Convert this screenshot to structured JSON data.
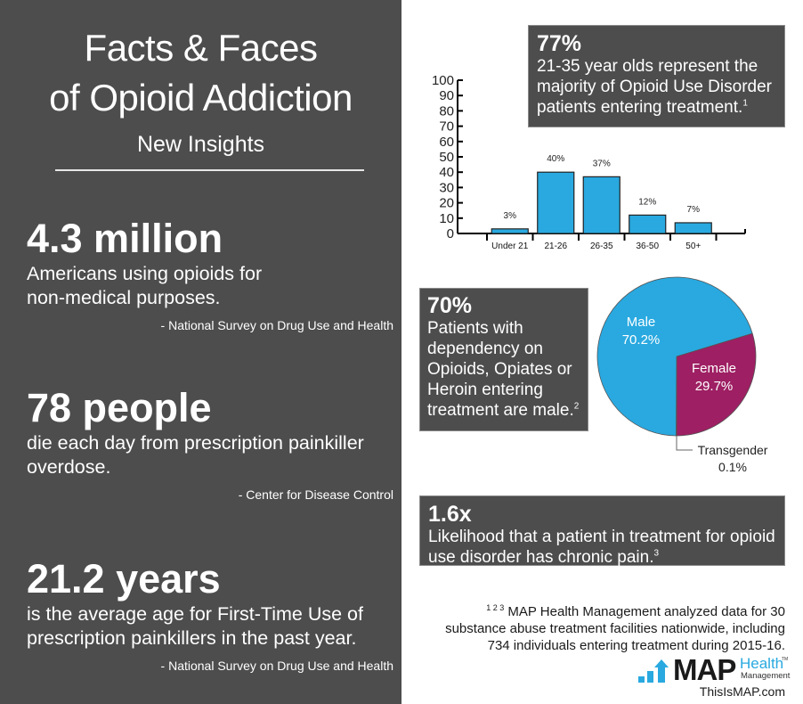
{
  "header": {
    "title_line1": "Facts & Faces",
    "title_line2": "of Opioid Addiction",
    "subtitle": "New Insights"
  },
  "facts": [
    {
      "big": "4.3 million",
      "desc_line1": "Americans using opioids for",
      "desc_line2": "non-medical purposes.",
      "source": "- National Survey on Drug Use and Health"
    },
    {
      "big": "78 people",
      "desc_line1": "die each day from prescription painkiller",
      "desc_line2": "overdose.",
      "source": "- Center for Disease Control"
    },
    {
      "big": "21.2 years",
      "desc_line1": "is the average age for First-Time Use of",
      "desc_line2": "prescription painkillers in the past year.",
      "source": "- National Survey on Drug Use and Health"
    }
  ],
  "callouts": {
    "age": {
      "big": "77%",
      "line1": "21-35 year olds represent the",
      "line2": "majority of Opioid Use Disorder",
      "line3": "patients entering treatment.",
      "note": "1"
    },
    "gender": {
      "big": "70%",
      "line1": "Patients with",
      "line2": "dependency on",
      "line3": "Opioids, Opiates or",
      "line4": "Heroin entering",
      "line5": "treatment are male.",
      "note": "2"
    },
    "pain": {
      "big": "1.6x",
      "line1": "Likelihood that a patient in treatment for opioid",
      "line2": "use disorder has chronic pain.",
      "note": "3"
    }
  },
  "chart_data": [
    {
      "type": "bar",
      "title": "",
      "xlabel": "",
      "ylabel": "",
      "categories": [
        "Under 21",
        "21-26",
        "26-35",
        "36-50",
        "50+"
      ],
      "values": [
        3,
        40,
        37,
        12,
        7
      ],
      "data_labels": [
        "3%",
        "40%",
        "37%",
        "12%",
        "7%"
      ],
      "ylim": [
        0,
        100
      ],
      "yticks": [
        0,
        10,
        20,
        30,
        40,
        50,
        60,
        70,
        80,
        90,
        100
      ],
      "grid": false,
      "bar_color": "#29a9e0"
    },
    {
      "type": "pie",
      "slices": [
        {
          "label": "Male",
          "value": 70.2,
          "value_label": "70.2%",
          "color": "#29a9e0"
        },
        {
          "label": "Female",
          "value": 29.7,
          "value_label": "29.7%",
          "color": "#9e1f63"
        },
        {
          "label": "Transgender",
          "value": 0.1,
          "value_label": "0.1%",
          "color": "#ffffff"
        }
      ]
    }
  ],
  "footnote": {
    "marks": "1 2 3",
    "line1": "MAP Health Management analyzed data for 30",
    "line2": "substance abuse treatment facilities nationwide, including",
    "line3": "734 individuals entering treatment during 2015-16."
  },
  "logo": {
    "map": "MAP",
    "health": "Health",
    "management": "Management",
    "tm": "TM",
    "website": "ThisIsMAP.com"
  },
  "colors": {
    "panel": "#4d4d4d",
    "accent_blue": "#29a9e0",
    "accent_magenta": "#9e1f63"
  }
}
